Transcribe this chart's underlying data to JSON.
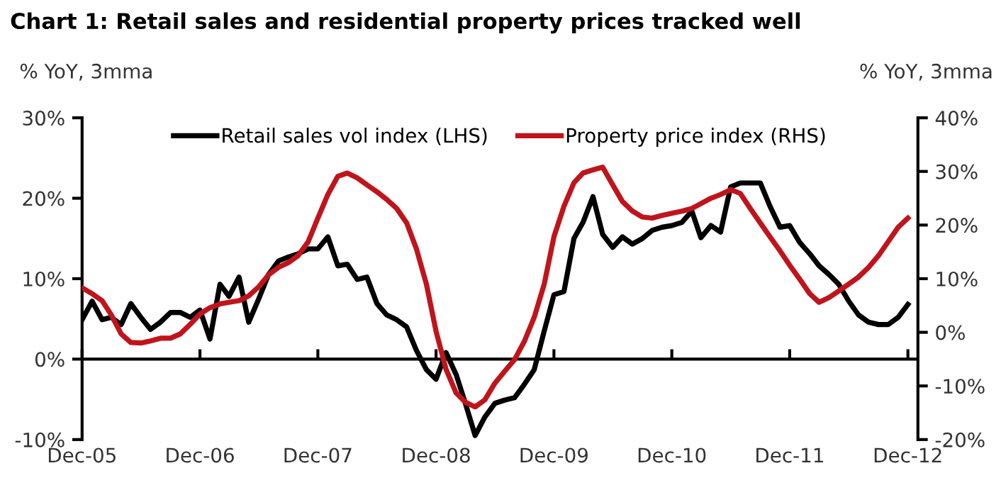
{
  "chart_data": {
    "type": "line",
    "title": "Chart 1: Retail sales and residential property prices tracked well",
    "ylabel": "% YoY, 3mma",
    "y2label": "% YoY, 3mma",
    "x": [
      "2005-12",
      "2006-01",
      "2006-02",
      "2006-03",
      "2006-04",
      "2006-05",
      "2006-06",
      "2006-07",
      "2006-08",
      "2006-09",
      "2006-10",
      "2006-11",
      "2006-12",
      "2007-01",
      "2007-02",
      "2007-03",
      "2007-04",
      "2007-05",
      "2007-06",
      "2007-07",
      "2007-08",
      "2007-09",
      "2007-10",
      "2007-11",
      "2007-12",
      "2008-01",
      "2008-02",
      "2008-03",
      "2008-04",
      "2008-05",
      "2008-06",
      "2008-07",
      "2008-08",
      "2008-09",
      "2008-10",
      "2008-11",
      "2008-12",
      "2009-01",
      "2009-02",
      "2009-03",
      "2009-04",
      "2009-05",
      "2009-06",
      "2009-07",
      "2009-08",
      "2009-09",
      "2009-10",
      "2009-11",
      "2009-12",
      "2010-01",
      "2010-02",
      "2010-03",
      "2010-04",
      "2010-05",
      "2010-06",
      "2010-07",
      "2010-08",
      "2010-09",
      "2010-10",
      "2010-11",
      "2010-12",
      "2011-01",
      "2011-02",
      "2011-03",
      "2011-04",
      "2011-05",
      "2011-06",
      "2011-07",
      "2011-08",
      "2011-09",
      "2011-10",
      "2011-11",
      "2011-12",
      "2012-01",
      "2012-02",
      "2012-03",
      "2012-04",
      "2012-05",
      "2012-06",
      "2012-07",
      "2012-08",
      "2012-09",
      "2012-10",
      "2012-11",
      "2012-12"
    ],
    "series": [
      {
        "name": "Retail sales vol index (LHS)",
        "color": "#000000",
        "values": [
          4.9,
          7.2,
          4.9,
          5.2,
          4.3,
          6.9,
          5.2,
          3.7,
          4.6,
          5.8,
          5.8,
          5.2,
          6.1,
          2.5,
          9.3,
          7.8,
          10.2,
          4.6,
          7.5,
          10.5,
          12.2,
          12.7,
          13.1,
          13.7,
          13.7,
          15.2,
          11.6,
          11.8,
          9.9,
          10.2,
          6.9,
          5.5,
          4.9,
          4.0,
          1.1,
          -1.3,
          -2.5,
          0.8,
          -1.9,
          -5.4,
          -9.5,
          -7.2,
          -5.5,
          -5.1,
          -4.8,
          -3.1,
          -1.3,
          3.5,
          8.0,
          8.4,
          15.0,
          17.0,
          20.2,
          15.5,
          13.9,
          15.2,
          14.3,
          15.0,
          16.0,
          16.4,
          16.6,
          17.0,
          18.4,
          15.1,
          16.6,
          15.8,
          21.4,
          21.9,
          21.9,
          21.9,
          19.0,
          16.4,
          16.6,
          14.5,
          13.1,
          11.6,
          10.5,
          9.3,
          7.2,
          5.5,
          4.6,
          4.3,
          4.3,
          5.2,
          6.8
        ]
      },
      {
        "name": "Property price index (RHS)",
        "color": "#c0141c",
        "axis": "y2",
        "values": [
          8.3,
          7.2,
          5.9,
          3.3,
          -0.3,
          -1.9,
          -2.0,
          -1.6,
          -1.1,
          -1.1,
          -0.3,
          1.5,
          3.4,
          4.6,
          5.3,
          5.6,
          5.9,
          6.8,
          8.5,
          10.7,
          12.1,
          13.0,
          14.3,
          16.9,
          21.3,
          25.7,
          29.1,
          29.7,
          28.8,
          27.5,
          26.2,
          24.8,
          23.1,
          20.4,
          15.6,
          9.0,
          0.2,
          -6.9,
          -11.3,
          -13.0,
          -13.9,
          -12.6,
          -9.5,
          -7.3,
          -5.1,
          -1.6,
          2.8,
          9.0,
          17.8,
          23.5,
          27.9,
          29.7,
          30.3,
          30.8,
          27.5,
          24.4,
          22.6,
          21.5,
          21.3,
          21.8,
          22.2,
          22.6,
          23.1,
          24.0,
          25.0,
          25.7,
          26.6,
          25.9,
          23.1,
          20.4,
          17.8,
          15.2,
          12.5,
          9.9,
          7.2,
          5.6,
          6.5,
          7.7,
          9.0,
          10.3,
          12.1,
          14.3,
          16.9,
          19.6,
          21.3
        ]
      }
    ],
    "xlim": [
      "2005-12",
      "2013-01"
    ],
    "xticks": [
      {
        "value": "2005-12",
        "label": "Dec-05"
      },
      {
        "value": "2006-12",
        "label": "Dec-06"
      },
      {
        "value": "2007-12",
        "label": "Dec-07"
      },
      {
        "value": "2008-12",
        "label": "Dec-08"
      },
      {
        "value": "2009-12",
        "label": "Dec-09"
      },
      {
        "value": "2010-12",
        "label": "Dec-10"
      },
      {
        "value": "2011-12",
        "label": "Dec-11"
      },
      {
        "value": "2012-12",
        "label": "Dec-12"
      }
    ],
    "ylim": [
      -10,
      30
    ],
    "yticks": [
      {
        "value": -10,
        "label": "-10%"
      },
      {
        "value": 0,
        "label": "0%"
      },
      {
        "value": 10,
        "label": "10%"
      },
      {
        "value": 20,
        "label": "20%"
      },
      {
        "value": 30,
        "label": "30%"
      }
    ],
    "y2lim": [
      -20,
      40
    ],
    "y2ticks": [
      {
        "value": -20,
        "label": "-20%"
      },
      {
        "value": -10,
        "label": "-10%"
      },
      {
        "value": 0,
        "label": "0%"
      },
      {
        "value": 10,
        "label": "10%"
      },
      {
        "value": 20,
        "label": "20%"
      },
      {
        "value": 30,
        "label": "30%"
      },
      {
        "value": 40,
        "label": "40%"
      }
    ],
    "ref_lines": [
      {
        "axis": "y",
        "value": 0,
        "color": "#000000"
      }
    ],
    "legend": "top",
    "marker": "none",
    "line_style": "solid"
  }
}
